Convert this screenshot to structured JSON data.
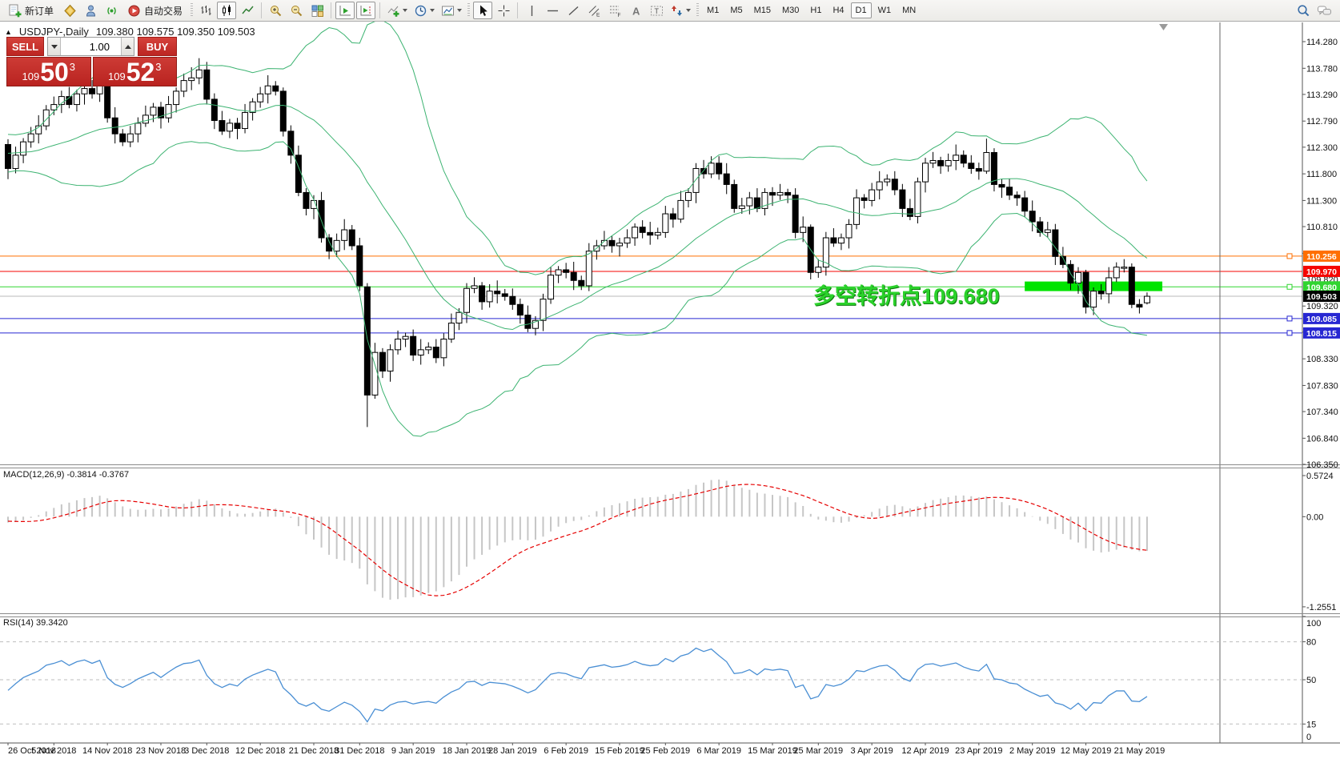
{
  "toolbar": {
    "new_order_label": "新订单",
    "autotrading_label": "自动交易",
    "timeframes": [
      "M1",
      "M5",
      "M15",
      "M30",
      "H1",
      "H4",
      "D1",
      "W1",
      "MN"
    ],
    "active_timeframe": "D1"
  },
  "title": {
    "symbol": "USDJPY-,Daily",
    "ohlc": "109.380 109.575 109.350 109.503"
  },
  "one_click": {
    "sell_label": "SELL",
    "buy_label": "BUY",
    "volume": "1.00",
    "sell_price": {
      "small": "109",
      "big": "50",
      "sup": "3"
    },
    "buy_price": {
      "small": "109",
      "big": "52",
      "sup": "3"
    }
  },
  "annotation": {
    "text": "多空转折点109.680"
  },
  "macd": {
    "label": "MACD(12,26,9) -0.3814 -0.3767"
  },
  "rsi": {
    "label": "RSI(14) 39.3420"
  },
  "chart_data": {
    "type": "candlestick",
    "symbol": "USDJPY-",
    "timeframe": "Daily",
    "last_ohlc": {
      "open": 109.38,
      "high": 109.575,
      "low": 109.35,
      "close": 109.503
    },
    "y_ticks": [
      "114.280",
      "113.780",
      "113.290",
      "112.790",
      "112.300",
      "111.800",
      "111.300",
      "110.810",
      "110.310",
      "109.820",
      "109.320",
      "108.830",
      "108.330",
      "107.830",
      "107.340",
      "106.840",
      "106.350"
    ],
    "levels": [
      {
        "label": "110.256",
        "price": 110.256,
        "color": "#ff6f00",
        "handle": true
      },
      {
        "label": "109.970",
        "price": 109.97,
        "color": "#f50500",
        "handle": false
      },
      {
        "label": "109.680",
        "price": 109.68,
        "color": "#30d530",
        "handle": true
      },
      {
        "label": "109.085",
        "price": 109.085,
        "color": "#2727d2",
        "handle": true
      },
      {
        "label": "108.815",
        "price": 108.815,
        "color": "#2727d2",
        "handle": true
      }
    ],
    "bid": {
      "label": "109.503",
      "price": 109.503,
      "line_color": "#b8b8b8",
      "box_color": "#000000"
    },
    "highlight_rect": {
      "price_from": 109.6,
      "price_to": 109.78,
      "x_from_idx": 133,
      "x_to_idx": 151,
      "color": "#00e400"
    },
    "bollinger": {
      "period": 20,
      "deviation": 2,
      "color": "#3cb371"
    },
    "macd": {
      "fast": 12,
      "slow": 26,
      "signal": 9,
      "axis": [
        "0.5724",
        "0.00",
        "-1.2551"
      ],
      "hist_color": "#c6c6c6",
      "signal_color": "#e60000"
    },
    "rsi": {
      "period": 14,
      "axis": [
        "100",
        "80",
        "50",
        "15",
        "0"
      ],
      "levels": [
        80,
        50,
        15
      ],
      "color": "#4a8fd4"
    },
    "x_labels": [
      "26 Oct 2018",
      "5 Nov 2018",
      "14 Nov 2018",
      "23 Nov 2018",
      "3 Dec 2018",
      "12 Dec 2018",
      "21 Dec 2018",
      "31 Dec 2018",
      "9 Jan 2019",
      "18 Jan 2019",
      "28 Jan 2019",
      "6 Feb 2019",
      "15 Feb 2019",
      "25 Feb 2019",
      "6 Mar 2019",
      "15 Mar 2019",
      "25 Mar 2019",
      "3 Apr 2019",
      "12 Apr 2019",
      "23 Apr 2019",
      "2 May 2019",
      "12 May 2019",
      "21 May 2019"
    ],
    "x_label_idx": [
      0,
      6,
      13,
      20,
      26,
      33,
      40,
      46,
      53,
      60,
      66,
      73,
      80,
      86,
      93,
      100,
      106,
      113,
      120,
      127,
      134,
      141,
      148
    ],
    "open_first": 112.35,
    "pre_window_closes": [
      112.55,
      112.4,
      112.2,
      112.45,
      112.3,
      112.1,
      111.95,
      112.2,
      112.35,
      112.15,
      112.0,
      112.25,
      112.4,
      112.3,
      112.2,
      112.1,
      112.3,
      112.5,
      112.4,
      112.25,
      112.05,
      111.85,
      112.0,
      112.2,
      112.35
    ],
    "closes": [
      111.9,
      112.15,
      112.4,
      112.55,
      112.7,
      113.0,
      113.1,
      113.25,
      113.1,
      113.3,
      113.4,
      113.3,
      113.45,
      112.85,
      112.55,
      112.4,
      112.55,
      112.75,
      112.9,
      113.05,
      112.85,
      113.1,
      113.35,
      113.55,
      113.6,
      113.75,
      113.2,
      112.8,
      112.6,
      112.75,
      112.65,
      112.95,
      113.15,
      113.3,
      113.45,
      113.35,
      112.6,
      112.15,
      111.45,
      111.15,
      111.3,
      110.6,
      110.35,
      110.55,
      110.75,
      110.45,
      109.7,
      107.65,
      108.45,
      108.1,
      108.5,
      108.7,
      108.75,
      108.4,
      108.5,
      108.55,
      108.35,
      108.7,
      109.0,
      109.2,
      109.65,
      109.7,
      109.4,
      109.6,
      109.55,
      109.5,
      109.35,
      109.15,
      108.9,
      109.05,
      109.45,
      109.9,
      110.0,
      109.95,
      109.8,
      109.7,
      110.35,
      110.45,
      110.55,
      110.45,
      110.5,
      110.6,
      110.8,
      110.7,
      110.65,
      110.7,
      111.05,
      110.95,
      111.3,
      111.45,
      111.9,
      111.8,
      112.0,
      111.8,
      111.6,
      111.15,
      111.2,
      111.35,
      111.15,
      111.45,
      111.4,
      111.45,
      111.4,
      110.7,
      110.8,
      109.95,
      110.05,
      110.6,
      110.5,
      110.6,
      110.85,
      111.35,
      111.3,
      111.5,
      111.65,
      111.7,
      111.5,
      111.15,
      111.0,
      111.65,
      112.0,
      112.05,
      111.95,
      112.05,
      112.15,
      112.0,
      111.9,
      111.85,
      112.2,
      111.6,
      111.55,
      111.4,
      111.35,
      111.1,
      110.9,
      110.7,
      110.75,
      110.25,
      110.1,
      109.75,
      109.95,
      109.3,
      109.6,
      109.55,
      109.85,
      110.05,
      110.05,
      109.35,
      109.3,
      109.503
    ],
    "special_candles": {
      "13": [
        113.45,
        113.52,
        112.76,
        112.85
      ],
      "25": [
        113.6,
        113.97,
        113.48,
        113.75
      ],
      "36": [
        113.35,
        113.42,
        112.5,
        112.6
      ],
      "47": [
        109.68,
        109.75,
        107.05,
        107.65
      ],
      "92": [
        111.8,
        112.13,
        111.72,
        112.0
      ],
      "105": [
        110.8,
        110.85,
        109.82,
        109.95
      ],
      "128": [
        111.85,
        112.46,
        111.8,
        112.2
      ],
      "141": [
        109.95,
        110.0,
        109.18,
        109.3
      ],
      "147": [
        110.05,
        110.12,
        109.28,
        109.35
      ],
      "148": [
        109.35,
        109.45,
        109.18,
        109.3
      ],
      "149": [
        109.38,
        109.575,
        109.35,
        109.503
      ]
    }
  }
}
